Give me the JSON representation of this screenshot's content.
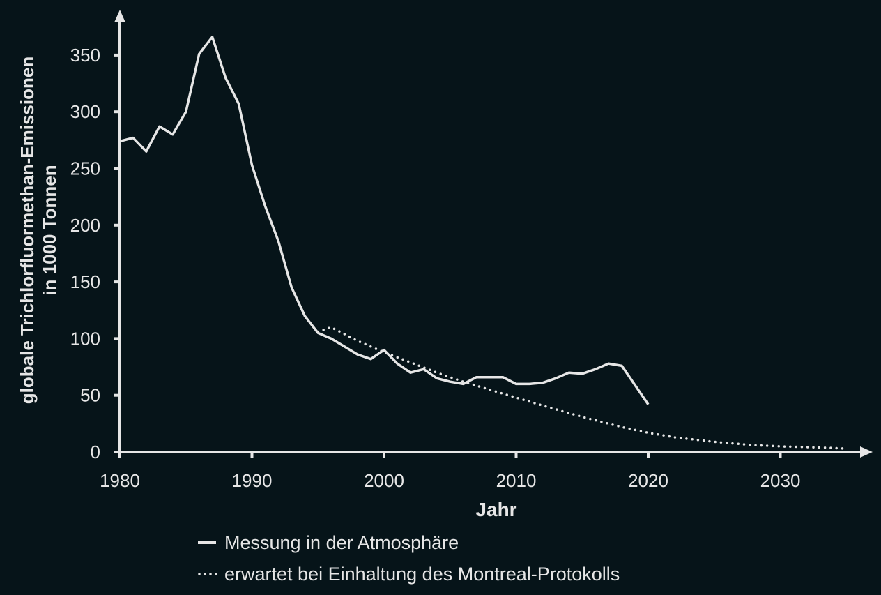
{
  "chart_data": {
    "type": "line",
    "title": "",
    "xlabel": "Jahr",
    "ylabel_lines": [
      "globale Trichlorfluormethan-Emissionen",
      "in 1000 Tonnen"
    ],
    "xlim": [
      1980,
      2035
    ],
    "ylim": [
      0,
      370
    ],
    "x_ticks": [
      1980,
      1990,
      2000,
      2010,
      2020,
      2030
    ],
    "x_tick_labels": [
      "1980",
      "1990",
      "2000",
      "2010",
      "2020",
      "2030"
    ],
    "y_ticks": [
      0,
      50,
      100,
      150,
      200,
      250,
      300,
      350
    ],
    "y_tick_labels": [
      "0",
      "50",
      "100",
      "150",
      "200",
      "250",
      "300",
      "350"
    ],
    "grid": false,
    "legend_position": "bottom",
    "colors": {
      "background": "#061419",
      "foreground": "#e6e6e6"
    },
    "series": [
      {
        "name": "Messung in der Atmosphäre",
        "style": "solid",
        "x": [
          1980,
          1981,
          1982,
          1983,
          1984,
          1985,
          1986,
          1987,
          1988,
          1989,
          1990,
          1991,
          1992,
          1993,
          1994,
          1995,
          1996,
          1997,
          1998,
          1999,
          2000,
          2001,
          2002,
          2003,
          2004,
          2005,
          2006,
          2007,
          2008,
          2009,
          2010,
          2011,
          2012,
          2013,
          2014,
          2015,
          2016,
          2017,
          2018,
          2020
        ],
        "y": [
          274,
          277,
          265,
          287,
          280,
          300,
          351,
          366,
          330,
          307,
          253,
          217,
          186,
          145,
          120,
          105,
          100,
          93,
          86,
          82,
          90,
          78,
          70,
          73,
          65,
          62,
          60,
          66,
          66,
          66,
          60,
          60,
          61,
          65,
          70,
          69,
          73,
          78,
          76,
          42
        ]
      },
      {
        "name": "erwartet bei Einhaltung des Montreal-Protokolls",
        "style": "dotted",
        "x": [
          1995,
          1996,
          1998,
          2000,
          2002,
          2004,
          2006,
          2008,
          2010,
          2012,
          2015,
          2018,
          2020,
          2022,
          2025,
          2028,
          2030,
          2033,
          2035
        ],
        "y": [
          106,
          110,
          98,
          88,
          79,
          70,
          62,
          55,
          48,
          41,
          31,
          22,
          17,
          13,
          9,
          6,
          5,
          4,
          3
        ]
      }
    ]
  }
}
